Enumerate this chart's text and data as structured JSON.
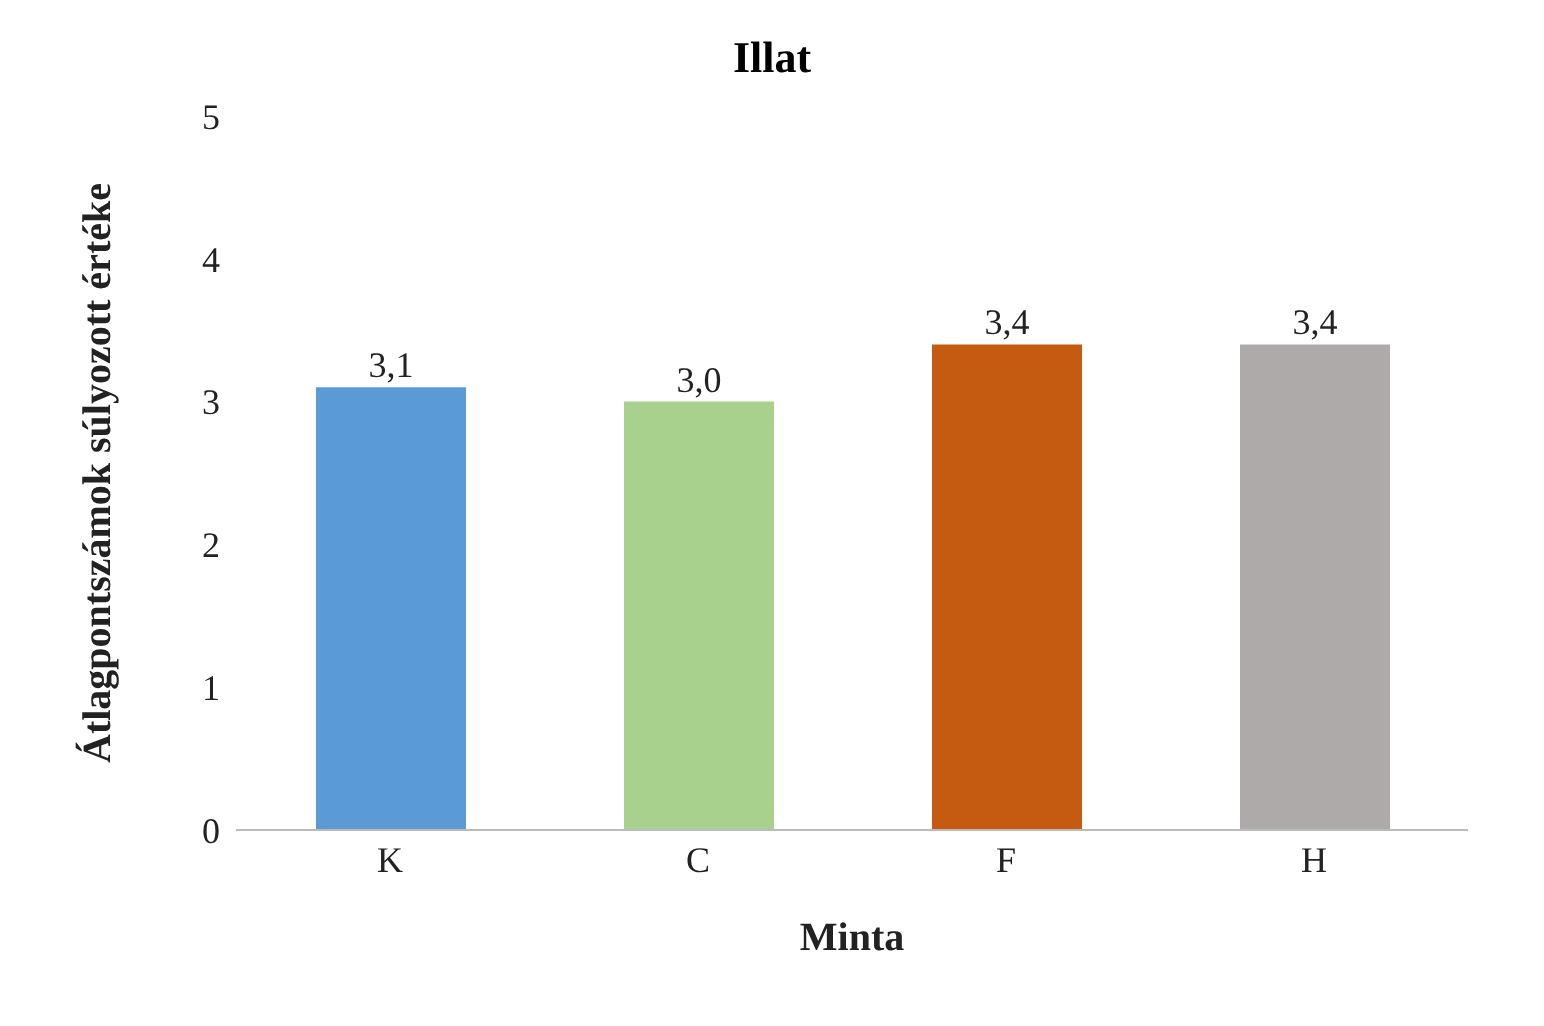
{
  "chart_data": {
    "type": "bar",
    "title": "Illat",
    "xlabel": "Minta",
    "ylabel": "Átlagpontszámok súlyozott értéke",
    "categories": [
      "K",
      "C",
      "F",
      "H"
    ],
    "values": [
      3.1,
      3.0,
      3.4,
      3.4
    ],
    "colors": [
      "#5b9bd5",
      "#a9d18e",
      "#c55a11",
      "#aeaaaa"
    ],
    "value_labels": [
      "3,1",
      "3,0",
      "3,4",
      "3,4"
    ],
    "ylim": [
      0,
      5
    ],
    "yticks": [
      0,
      1,
      2,
      3,
      4,
      5
    ],
    "grid": false,
    "legend": false
  }
}
